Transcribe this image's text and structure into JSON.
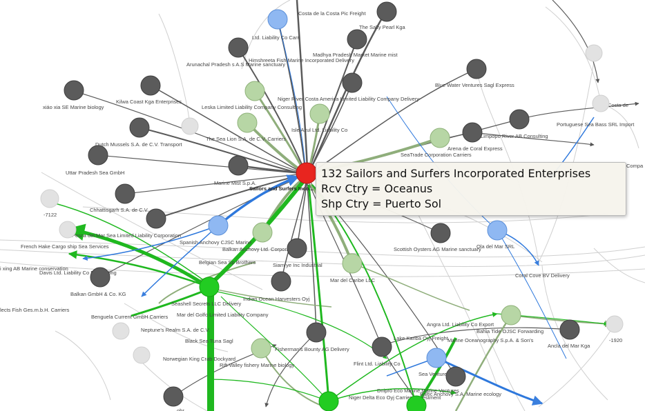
{
  "colors": {
    "focus": "#e8251f",
    "dark": "#5b5b5b",
    "lightgreen": "#b7d6a5",
    "green": "#22cc22",
    "blue": "#8fb8f2",
    "faded": "#e2e2e2"
  },
  "focus_node": {
    "id": "focus",
    "label": "Sailors and Surfers Inco..."
  },
  "tooltip": {
    "title": "132 Sailors and Surfers Incorporated Enterprises",
    "rcv": "Rcv Ctry = Oceanus",
    "shp": "Shp Ctry = Puerto Sol"
  },
  "nodes": [
    {
      "id": "n01",
      "type": "blue",
      "label": ""
    },
    {
      "id": "n02",
      "type": "dark",
      "label": ""
    },
    {
      "id": "n03",
      "type": "dark",
      "label": "The Salty Pearl Kga"
    },
    {
      "id": "n04",
      "type": "dark",
      "label": "Ltd. Liability Co Carri"
    },
    {
      "id": "n05",
      "type": "dark",
      "label": "Arunachal Pradesh s A.S Marine sanctuary"
    },
    {
      "id": "n06",
      "type": "dark",
      "label": "Madhya Pradesh  Market Marine mist"
    },
    {
      "id": "n07",
      "type": "dark",
      "label": "Blue Water Ventures Sagl Express"
    },
    {
      "id": "n08",
      "type": "faded",
      "label": ""
    },
    {
      "id": "n09",
      "type": "dark",
      "label": "xiáo xia SE Marine biology"
    },
    {
      "id": "n10",
      "type": "dark",
      "label": "Kilwa Coast Kga Enterprises"
    },
    {
      "id": "n11",
      "type": "lightgreen",
      "label": "Leska Limited Liability Company Consulting"
    },
    {
      "id": "n12",
      "type": "dark",
      "label": "Niger River Costa America Limited Liability Company Delivery"
    },
    {
      "id": "n13",
      "type": "lightgreen",
      "label": "Isle Azul Ltd. Liability Co"
    },
    {
      "id": "n14",
      "type": "dark",
      "label": "Portuguese Sea Bass SRL Import"
    },
    {
      "id": "n15",
      "type": "faded",
      "label": ""
    },
    {
      "id": "n16",
      "type": "dark",
      "label": "Dutch Mussels S.A. de C.V. Transport"
    },
    {
      "id": "n17",
      "type": "lightgreen",
      "label": "The Sea Lion S.A. de C.V. Carriers"
    },
    {
      "id": "n18",
      "type": "lightgreen",
      "label": "Arena de Coral Express"
    },
    {
      "id": "n19",
      "type": "dark",
      "label": "Limpopo River  AB Consulting"
    },
    {
      "id": "n20",
      "type": "dark",
      "label": "Uttar Pradesh Sea  GmbH"
    },
    {
      "id": "n21",
      "type": "dark",
      "label": "Marine Mist S.p.A."
    },
    {
      "id": "n22",
      "type": "dark",
      "label": "Chhattisgarh  S.A. de C.V."
    },
    {
      "id": "n23",
      "type": "dark",
      "label": "Pesca del Mar Sea Limited Liability Corporation"
    },
    {
      "id": "n24",
      "type": "blue",
      "label": "Spanish Anchovy CJSC Marine"
    },
    {
      "id": "n25",
      "type": "lightgreen",
      "label": "Balkan Anchovy Ltd. Corporation"
    },
    {
      "id": "n26",
      "type": "dark",
      "label": "Scottish Oysters AG Marine sanctuary"
    },
    {
      "id": "n27",
      "type": "blue",
      "label": "Ola del Mar SRL"
    },
    {
      "id": "n28",
      "type": "dark",
      "label": "French Hake Cargo ship Sea Services"
    },
    {
      "id": "n29",
      "type": "dark",
      "label": "Davis Ltd. Liability Co Forwarding"
    },
    {
      "id": "n30",
      "type": "green",
      "label": "Balkan  GmbH & Co. KG"
    },
    {
      "id": "n31",
      "type": "dark",
      "label": "Belgian  Sea Sp Brothers"
    },
    {
      "id": "n32",
      "type": "dark",
      "label": "Siam ye Inc Industrial"
    },
    {
      "id": "n33",
      "type": "lightgreen",
      "label": "Mar del Caribe LLC"
    },
    {
      "id": "n34",
      "type": "dark",
      "label": "Indian Ocean Harvesters Oyj"
    },
    {
      "id": "n35",
      "type": "lightgreen",
      "label": "Mar del Golfo Limited Liability Company"
    },
    {
      "id": "n36",
      "type": "lightgreen",
      "label": "Angra Ltd. Liability Co Export"
    },
    {
      "id": "n37",
      "type": "dark",
      "label": "Ancla del Mar Kga"
    },
    {
      "id": "n38",
      "type": "dark",
      "label": "Fisherman's Bounty AG Delivery"
    },
    {
      "id": "n39",
      "type": "dark",
      "label": "Lake Kariba  Oyj Freight"
    },
    {
      "id": "n40",
      "type": "lightgreen",
      "label": "Black Sea Tuna Sagl"
    },
    {
      "id": "n41",
      "type": "blue",
      "label": "Flint Ltd. Liability Co"
    },
    {
      "id": "n42",
      "type": "dark",
      "label": "Sea  Ventures AG"
    },
    {
      "id": "n43",
      "type": "dark",
      "label": ""
    },
    {
      "id": "n44",
      "type": "green",
      "label": "Niger Delta  Eco Oyj Carriers Investment"
    },
    {
      "id": "n45",
      "type": "green",
      "label": ""
    },
    {
      "id": "n46",
      "type": "faded",
      "label": "-7122"
    },
    {
      "id": "n47",
      "type": "faded",
      "label": ""
    },
    {
      "id": "n48",
      "type": "faded",
      "label": ""
    },
    {
      "id": "n49",
      "type": "faded",
      "label": "-1920"
    },
    {
      "id": "n50",
      "type": "faded",
      "label": ""
    },
    {
      "id": "n51",
      "type": "faded",
      "label": ""
    }
  ],
  "labels": [
    {
      "id": "t01",
      "text": "Costa de la Costa Pic Freight"
    },
    {
      "id": "t02",
      "text": "Himshreeta Fish Marine Incorporated Delivery"
    },
    {
      "id": "t03",
      "text": "Costa de"
    },
    {
      "id": "t04",
      "text": "Compa"
    },
    {
      "id": "t05",
      "text": "SeaTrade Corporation Carriers"
    },
    {
      "id": "t06",
      "text": "Seashell Secrets LLC Delivery"
    },
    {
      "id": "t07",
      "text": "Benguela Current  GmbH Carriers"
    },
    {
      "id": "t08",
      "text": "Neptune's Realm S.A. de C.V."
    },
    {
      "id": "t09",
      "text": "Norwegian King Crab Dockyard"
    },
    {
      "id": "t10",
      "text": "Rift Valley fishery Marine biology"
    },
    {
      "id": "t11",
      "text": "Coral Cove BV Delivery"
    },
    {
      "id": "t12",
      "text": "Marine Oceanography S.p.A. & Son's"
    },
    {
      "id": "t13",
      "text": "Bahia Tide  OJSC Forwarding"
    },
    {
      "id": "t14",
      "text": "Dnipro  Eco Marine Marine Ventures"
    },
    {
      "id": "t15",
      "text": "Baltic Anchovy S.A. Marine ecology"
    },
    {
      "id": "t16",
      "text": "i xing AB Marine conservation"
    },
    {
      "id": "t17",
      "text": "lects Fish Ges.m.b.H. Carriers"
    },
    {
      "id": "t18",
      "text": "ohr"
    }
  ]
}
